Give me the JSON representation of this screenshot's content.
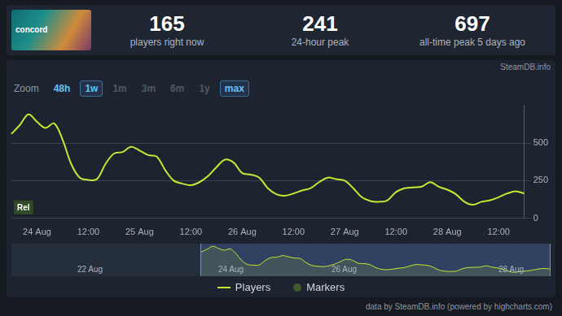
{
  "header": {
    "game": "concord",
    "stats": [
      {
        "value": 165,
        "label": "players right now"
      },
      {
        "value": 241,
        "label": "24-hour peak"
      },
      {
        "value": 697,
        "label": "all-time peak 5 days ago"
      }
    ]
  },
  "watermark": "SteamDB.info",
  "zoom": {
    "label": "Zoom",
    "buttons": [
      "48h",
      "1w",
      "1m",
      "3m",
      "6m",
      "1y",
      "max"
    ],
    "enabled": [
      "48h",
      "1w",
      "max"
    ],
    "selected": [
      "1w",
      "max"
    ]
  },
  "chart_data": {
    "type": "line",
    "categories": [
      null,
      null,
      null,
      "24 Aug",
      null,
      null,
      null,
      null,
      null,
      "12:00",
      null,
      null,
      null,
      null,
      null,
      "25 Aug",
      null,
      null,
      null,
      null,
      null,
      "12:00",
      null,
      null,
      null,
      null,
      null,
      "26 Aug",
      null,
      null,
      null,
      null,
      null,
      "12:00",
      null,
      null,
      null,
      null,
      null,
      "27 Aug",
      null,
      null,
      null,
      null,
      null,
      "12:00",
      null,
      null,
      null,
      null,
      null,
      "28 Aug",
      null,
      null,
      null,
      null,
      null,
      "12:00",
      null,
      null,
      null
    ],
    "series": [
      {
        "name": "Players",
        "color": "#c6e833",
        "values": [
          560,
          620,
          690,
          640,
          600,
          630,
          520,
          360,
          270,
          255,
          260,
          360,
          430,
          440,
          475,
          450,
          420,
          410,
          320,
          250,
          230,
          220,
          240,
          280,
          340,
          390,
          370,
          300,
          290,
          270,
          200,
          160,
          150,
          165,
          185,
          200,
          240,
          270,
          260,
          250,
          200,
          140,
          115,
          110,
          120,
          175,
          200,
          205,
          210,
          240,
          210,
          190,
          160,
          110,
          90,
          110,
          120,
          140,
          165,
          180,
          165
        ]
      },
      {
        "name": "Markers",
        "color": "#3e5c2c",
        "marker": "circle",
        "values": [
          null,
          null,
          null,
          null,
          null,
          null,
          null,
          null,
          null,
          null,
          null,
          null,
          null,
          null,
          null,
          null,
          null,
          null,
          null,
          null,
          null,
          null,
          null,
          null,
          null,
          null,
          null,
          null,
          null,
          null,
          null,
          null,
          null,
          null,
          null,
          null,
          null,
          null,
          null,
          null,
          null,
          null,
          null,
          null,
          null,
          null,
          null,
          null,
          null,
          null,
          null,
          null,
          null,
          null,
          null,
          null,
          null,
          null,
          null,
          null,
          null
        ]
      }
    ],
    "ylim": [
      0,
      750
    ],
    "yticks": [
      0,
      250,
      500
    ],
    "grid": true,
    "legend": "bottom",
    "annotations": [
      "Rel"
    ]
  },
  "navigator": {
    "labels": [
      "22 Aug",
      "24 Aug",
      "26 Aug",
      "28 Aug"
    ]
  },
  "credit": "data by SteamDB.info (powered by highcharts.com)"
}
